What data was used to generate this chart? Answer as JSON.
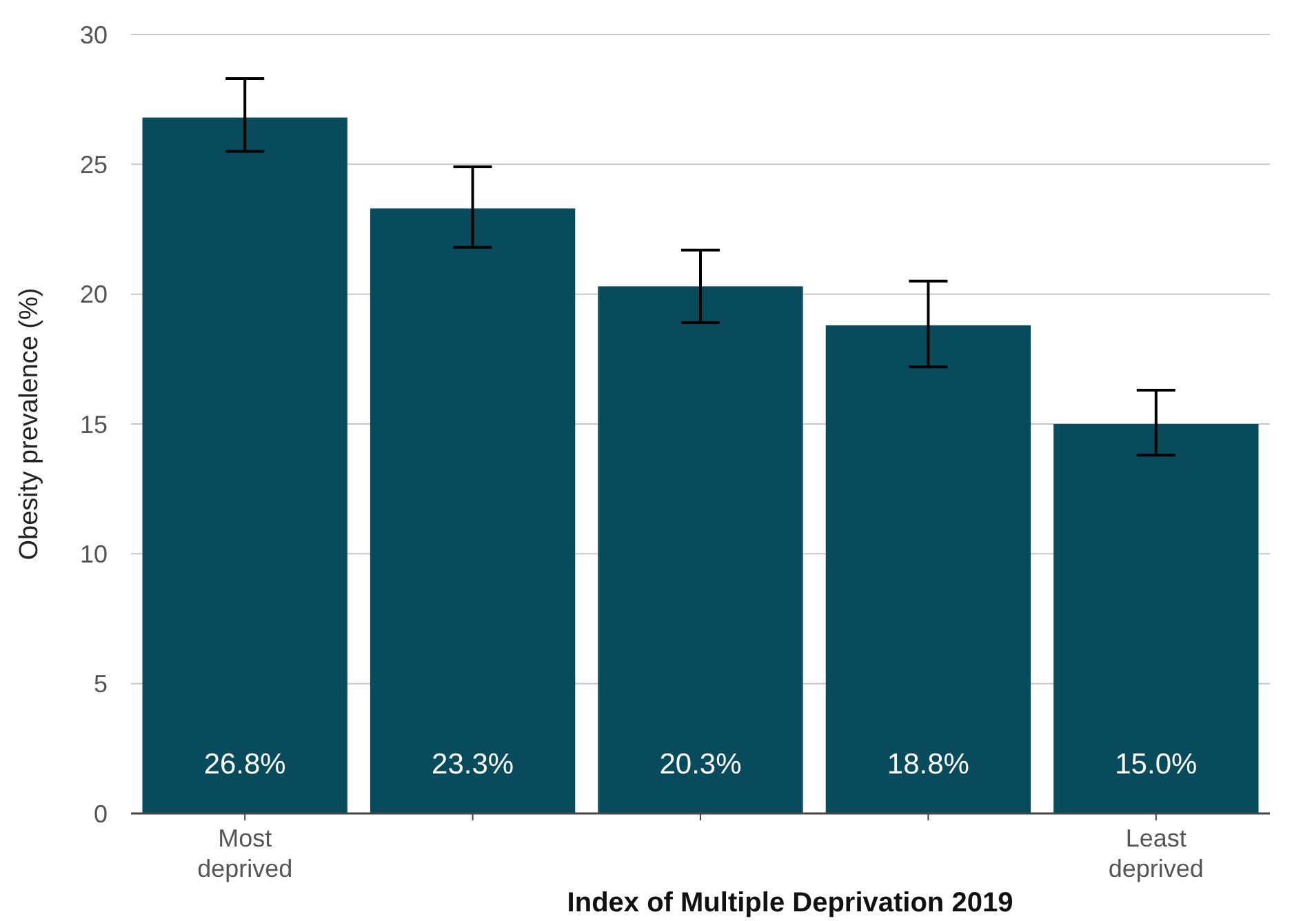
{
  "chart_data": {
    "type": "bar",
    "xlabel": "Index of Multiple Deprivation 2019",
    "ylabel": "Obesity prevalence (%)",
    "categories": [
      "Most deprived",
      null,
      null,
      null,
      "Least deprived"
    ],
    "values": [
      26.8,
      23.3,
      20.3,
      18.8,
      15.0
    ],
    "value_labels": [
      "26.8%",
      "23.3%",
      "20.3%",
      "18.8%",
      "15.0%"
    ],
    "errors": [
      [
        25.5,
        28.3
      ],
      [
        21.8,
        24.9
      ],
      [
        18.9,
        21.7
      ],
      [
        17.2,
        20.5
      ],
      [
        13.8,
        16.3
      ]
    ],
    "color": "#074b5d",
    "ylim": [
      0,
      30
    ],
    "yticks": [
      0,
      5,
      10,
      15,
      20,
      25,
      30
    ],
    "grid": "y"
  }
}
